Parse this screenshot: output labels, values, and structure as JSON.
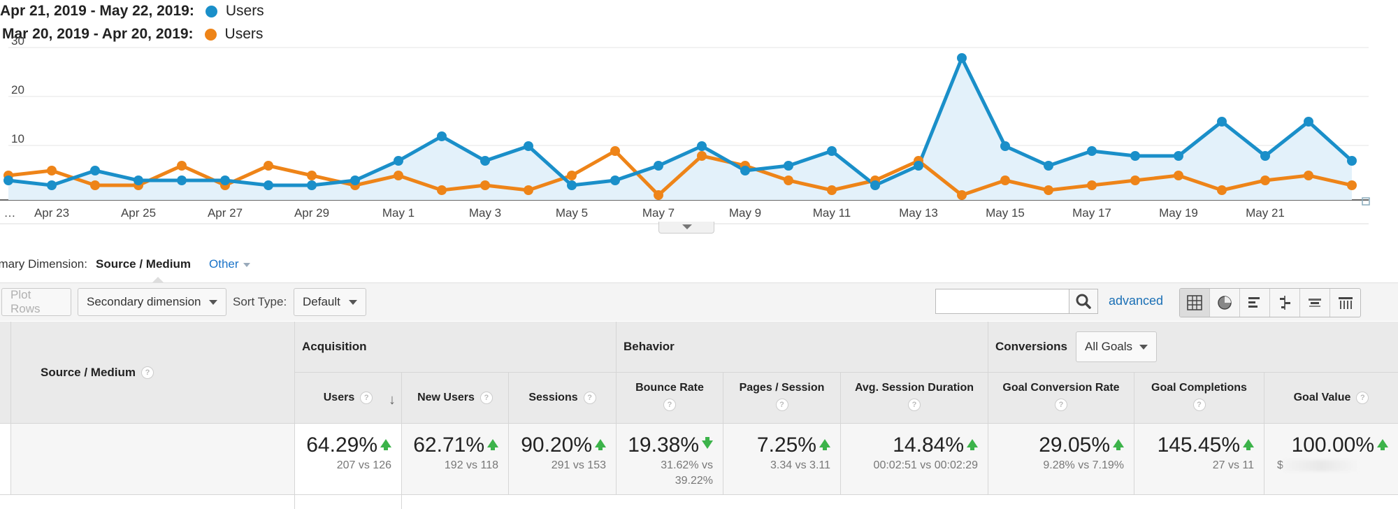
{
  "legend": [
    {
      "range": "Apr 21, 2019 - May 22, 2019:",
      "metric": "Users",
      "color": "#1a8fc9"
    },
    {
      "range": "Mar 20, 2019 - Apr 20, 2019:",
      "metric": "Users",
      "color": "#ee8418"
    }
  ],
  "chart_data": {
    "type": "line",
    "y_ticks": [
      "30",
      "20",
      "10"
    ],
    "ylim": [
      0,
      30
    ],
    "x_tick_labels": [
      "…",
      "Apr 23",
      "Apr 25",
      "Apr 27",
      "Apr 29",
      "May 1",
      "May 3",
      "May 5",
      "May 7",
      "May 9",
      "May 11",
      "May 13",
      "May 15",
      "May 17",
      "May 19",
      "May 21"
    ],
    "series": [
      {
        "name": "Apr 21, 2019 - May 22, 2019",
        "color": "#1a8fc9",
        "area": true,
        "values": [
          4,
          3,
          6,
          4,
          4,
          4,
          3,
          3,
          4,
          8,
          13,
          8,
          11,
          3,
          4,
          7,
          11,
          6,
          7,
          10,
          3,
          7,
          29,
          11,
          7,
          10,
          9,
          9,
          16,
          9,
          16,
          8
        ]
      },
      {
        "name": "Mar 20, 2019 - Apr 20, 2019",
        "color": "#ee8418",
        "area": false,
        "values": [
          5,
          6,
          3,
          3,
          7,
          3,
          7,
          5,
          3,
          5,
          2,
          3,
          2,
          5,
          10,
          1,
          9,
          7,
          4,
          2,
          4,
          8,
          1,
          4,
          2,
          3,
          4,
          5,
          2,
          4,
          5,
          3
        ]
      }
    ]
  },
  "dimensions": {
    "label": "rimary Dimension:",
    "value": "Source / Medium",
    "other": "Other"
  },
  "toolbar": {
    "plot_rows": "Plot Rows",
    "secondary_dimension": "Secondary dimension",
    "sort_type_label": "Sort Type:",
    "sort_type_value": "Default",
    "search_value": "",
    "advanced": "advanced"
  },
  "table": {
    "source_medium_header": "Source / Medium",
    "groups": {
      "acquisition": "Acquisition",
      "behavior": "Behavior",
      "conversions": "Conversions",
      "goal_select": "All Goals"
    },
    "columns": [
      "Users",
      "New Users",
      "Sessions",
      "Bounce Rate",
      "Pages / Session",
      "Avg. Session Duration",
      "Goal Conversion Rate",
      "Goal Completions",
      "Goal Value"
    ],
    "totals": [
      {
        "pct": "64.29%",
        "trend": "up",
        "cmp": "207 vs 126"
      },
      {
        "pct": "62.71%",
        "trend": "up",
        "cmp": "192 vs 118"
      },
      {
        "pct": "90.20%",
        "trend": "up",
        "cmp": "291 vs 153"
      },
      {
        "pct": "19.38%",
        "trend": "down",
        "cmp": "31.62% vs",
        "cmp2": "39.22%"
      },
      {
        "pct": "7.25%",
        "trend": "up",
        "cmp": "3.34 vs 3.11"
      },
      {
        "pct": "14.84%",
        "trend": "up",
        "cmp": "00:02:51 vs 00:02:29"
      },
      {
        "pct": "29.05%",
        "trend": "up",
        "cmp": "9.28% vs 7.19%"
      },
      {
        "pct": "145.45%",
        "trend": "up",
        "cmp": "27 vs 11"
      },
      {
        "pct": "100.00%",
        "trend": "up",
        "cmp": "$"
      }
    ]
  }
}
